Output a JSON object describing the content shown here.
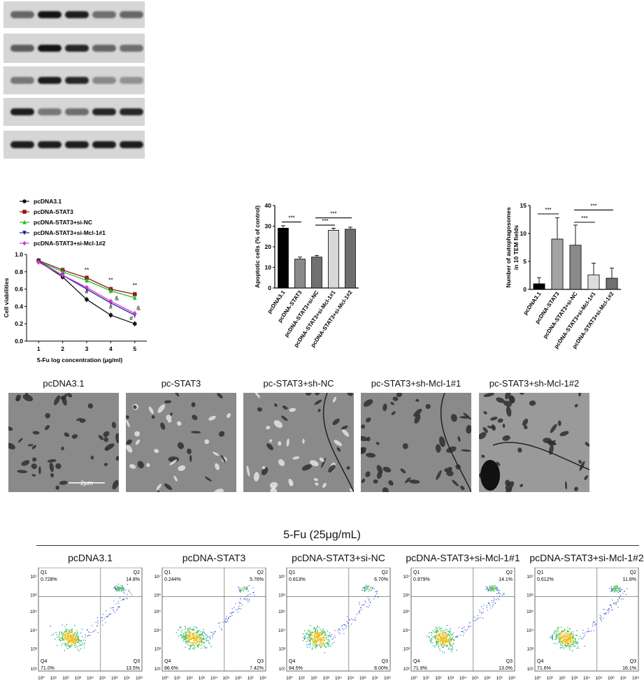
{
  "blots": {
    "lane_count": 5,
    "rows": [
      {
        "bands": [
          0.55,
          1.0,
          0.95,
          0.5,
          0.55
        ]
      },
      {
        "bands": [
          0.6,
          1.0,
          0.9,
          0.55,
          0.5
        ]
      },
      {
        "bands": [
          0.45,
          0.95,
          0.9,
          0.35,
          0.3
        ]
      },
      {
        "bands": [
          0.95,
          0.45,
          0.5,
          0.9,
          0.9
        ]
      },
      {
        "bands": [
          0.95,
          0.95,
          0.95,
          0.95,
          0.95
        ]
      }
    ]
  },
  "chart_data": [
    {
      "type": "line",
      "xlabel": "5-Fu log concentration (μg/ml)",
      "ylabel": "Cell viabilities",
      "x": [
        1,
        2,
        3,
        4,
        5
      ],
      "xlim": [
        0.5,
        5.5
      ],
      "ylim": [
        0,
        1.0
      ],
      "yticks": [
        "0.0",
        "0.2",
        "0.4",
        "0.6",
        "0.8",
        "1.0"
      ],
      "xticks": [
        "1",
        "2",
        "3",
        "4",
        "5"
      ],
      "legend_position": "top-left",
      "series": [
        {
          "name": "pcDNA3.1",
          "color": "#111111",
          "marker": "circle",
          "values": [
            0.92,
            0.74,
            0.48,
            0.3,
            0.2
          ]
        },
        {
          "name": "pcDNA-STAT3",
          "color": "#8b1a1a",
          "marker": "square",
          "values": [
            0.93,
            0.82,
            0.73,
            0.6,
            0.54
          ]
        },
        {
          "name": "pcDNA-STAT3+si-NC",
          "color": "#22c022",
          "marker": "triangle",
          "values": [
            0.92,
            0.8,
            0.7,
            0.58,
            0.5
          ]
        },
        {
          "name": "pcDNA-STAT3+si-Mcl-1#1",
          "color": "#1a1a9c",
          "marker": "triangle-down",
          "values": [
            0.92,
            0.76,
            0.6,
            0.44,
            0.3
          ]
        },
        {
          "name": "pcDNA-STAT3+si-Mcl-1#2",
          "color": "#d43ad4",
          "marker": "diamond",
          "values": [
            0.91,
            0.76,
            0.62,
            0.46,
            0.32
          ]
        }
      ],
      "annotations": [
        {
          "text": "**",
          "x": 3,
          "y": 0.8
        },
        {
          "text": "**",
          "x": 4,
          "y": 0.68
        },
        {
          "text": "**",
          "x": 5,
          "y": 0.62
        },
        {
          "text": "#",
          "x": 3,
          "y": 0.55
        },
        {
          "text": "#",
          "x": 4,
          "y": 0.37
        },
        {
          "text": "&",
          "x": 4.25,
          "y": 0.47
        },
        {
          "text": "#",
          "x": 4.85,
          "y": 0.24
        },
        {
          "text": "&",
          "x": 5.15,
          "y": 0.36
        }
      ]
    },
    {
      "type": "bar",
      "ylabel": "Apoptotic cells (% of control)",
      "ylim": [
        0,
        40
      ],
      "yticks": [
        "0",
        "10",
        "20",
        "30",
        "40"
      ],
      "categories": [
        "pcDNA3.1",
        "pcDNA-STAT3",
        "pcDNA-STAT3+si-NC",
        "pcDNA-STAT3+si-Mcl-1#1",
        "pcDNA-STAT3+si-Mcl-1#2"
      ],
      "values": [
        29,
        14,
        15,
        28,
        28.5
      ],
      "errors": [
        1.2,
        1.0,
        0.8,
        1.0,
        1.0
      ],
      "colors": [
        "#000000",
        "#8a8a8a",
        "#707070",
        "#d8d8d8",
        "#6e6e6e"
      ],
      "significance": [
        {
          "from": 0,
          "to": 1,
          "y": 32,
          "label": "***"
        },
        {
          "from": 2,
          "to": 4,
          "y": 34,
          "label": "***"
        },
        {
          "from": 2,
          "to": 3,
          "y": 30.5,
          "label": "***"
        }
      ]
    },
    {
      "type": "bar",
      "ylabel_lines": [
        "Number of autophagosomes",
        "in 10 TEM fields"
      ],
      "ylim": [
        0,
        15
      ],
      "yticks": [
        "0",
        "5",
        "10",
        "15"
      ],
      "categories": [
        "pcDNA3.1",
        "pcDNA-STAT3",
        "pcDNA-STAT3+si-NC",
        "pcDNA-STAT3+si-Mcl-1#1",
        "pcDNA-STAT3+si-Mcl-1#2"
      ],
      "values": [
        1,
        9,
        7.9,
        2.6,
        2
      ],
      "errors": [
        1.1,
        3.8,
        3.6,
        2.1,
        1.8
      ],
      "colors": [
        "#000000",
        "#a3a3a3",
        "#8a8a8a",
        "#dcdcdc",
        "#707070"
      ],
      "significance": [
        {
          "from": 0,
          "to": 1,
          "y": 13.5,
          "label": "***"
        },
        {
          "from": 2,
          "to": 4,
          "y": 14.2,
          "label": "***"
        },
        {
          "from": 2,
          "to": 3,
          "y": 12,
          "label": "***"
        }
      ]
    },
    {
      "type": "scatter",
      "group_title": "5-Fu (25μg/mL)",
      "axis_ticks": [
        "10⁰",
        "10¹",
        "10²",
        "10³",
        "10⁴",
        "10⁵",
        "10⁶",
        "10⁷",
        "10⁸"
      ],
      "y_ticks": [
        "10¹",
        "10³",
        "10⁴",
        "10⁵",
        "10⁶",
        "10⁷"
      ],
      "panels": [
        {
          "title": "pcDNA3.1",
          "Q1": "0.728%",
          "Q2": "14.8%",
          "Q3": "13.5%",
          "Q4": "71.0%"
        },
        {
          "title": "pcDNA-STAT3",
          "Q1": "0.244%",
          "Q2": "5.76%",
          "Q3": "7.42%",
          "Q4": "86.6%"
        },
        {
          "title": "pcDNA-STAT3+si-NC",
          "Q1": "0.813%",
          "Q2": "6.70%",
          "Q3": "8.00%",
          "Q4": "84.5%"
        },
        {
          "title": "pcDNA-STAT3+si-Mcl-1#1",
          "Q1": "0.979%",
          "Q2": "14.1%",
          "Q3": "13.0%",
          "Q4": "71.9%"
        },
        {
          "title": "pcDNA-STAT3+si-Mcl-1#2",
          "Q1": "0.612%",
          "Q2": "11.8%",
          "Q3": "16.1%",
          "Q4": "71.6%"
        }
      ]
    }
  ],
  "tem": {
    "titles": [
      "pcDNA3.1",
      "pc-STAT3",
      "pc-STAT3+sh-NC",
      "pc-STAT3+sh-Mcl-1#1",
      "pc-STAT3+sh-Mcl-1#2"
    ],
    "scale_label": "2μm"
  }
}
